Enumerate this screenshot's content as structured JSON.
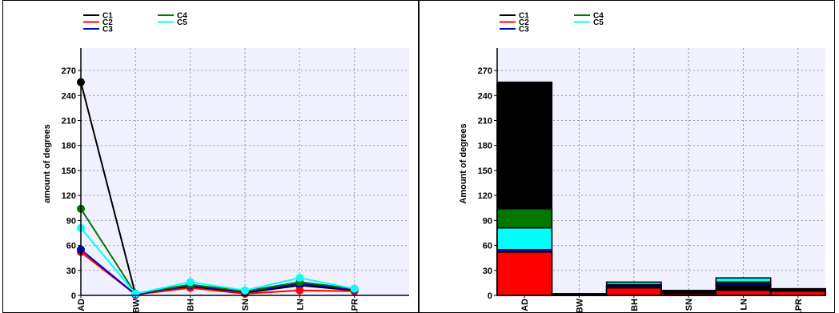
{
  "chart_data": [
    {
      "type": "line",
      "ylabel": "amount of degrees",
      "xlabel": "",
      "categories": [
        "AD",
        "BW",
        "BH",
        "SN",
        "LN",
        "LPR"
      ],
      "ylim": [
        0,
        297
      ],
      "yticks": [
        0,
        30,
        60,
        90,
        120,
        150,
        180,
        210,
        240,
        270
      ],
      "grid": true,
      "legend_position": "top-left",
      "series": [
        {
          "name": "C1",
          "color": "#000000",
          "values": [
            256,
            1,
            10,
            3,
            12,
            6
          ]
        },
        {
          "name": "C2",
          "color": "#ff0000",
          "values": [
            52,
            1,
            9,
            2,
            6,
            5
          ]
        },
        {
          "name": "C3",
          "color": "#0000cc",
          "values": [
            55,
            1,
            12,
            4,
            14,
            7
          ]
        },
        {
          "name": "C4",
          "color": "#007700",
          "values": [
            104,
            2,
            13,
            5,
            16,
            8
          ]
        },
        {
          "name": "C5",
          "color": "#00ffff",
          "values": [
            81,
            2,
            16,
            6,
            21,
            8
          ]
        }
      ]
    },
    {
      "type": "bar",
      "ylabel": "Amount of degrees",
      "xlabel": "",
      "categories": [
        "AD",
        "BW",
        "BH",
        "SN",
        "LN",
        "LPR"
      ],
      "ylim": [
        0,
        297
      ],
      "yticks": [
        0,
        30,
        60,
        90,
        120,
        150,
        180,
        210,
        240,
        270
      ],
      "grid": true,
      "legend_position": "top-left",
      "series": [
        {
          "name": "C1",
          "color": "#000000",
          "values": [
            256,
            1,
            10,
            3,
            12,
            6
          ]
        },
        {
          "name": "C2",
          "color": "#ff0000",
          "values": [
            52,
            1,
            9,
            2,
            6,
            5
          ]
        },
        {
          "name": "C3",
          "color": "#0000cc",
          "values": [
            55,
            1,
            12,
            4,
            14,
            7
          ]
        },
        {
          "name": "C4",
          "color": "#007700",
          "values": [
            104,
            2,
            13,
            5,
            16,
            8
          ]
        },
        {
          "name": "C5",
          "color": "#00ffff",
          "values": [
            81,
            2,
            16,
            6,
            21,
            8
          ]
        }
      ]
    }
  ]
}
